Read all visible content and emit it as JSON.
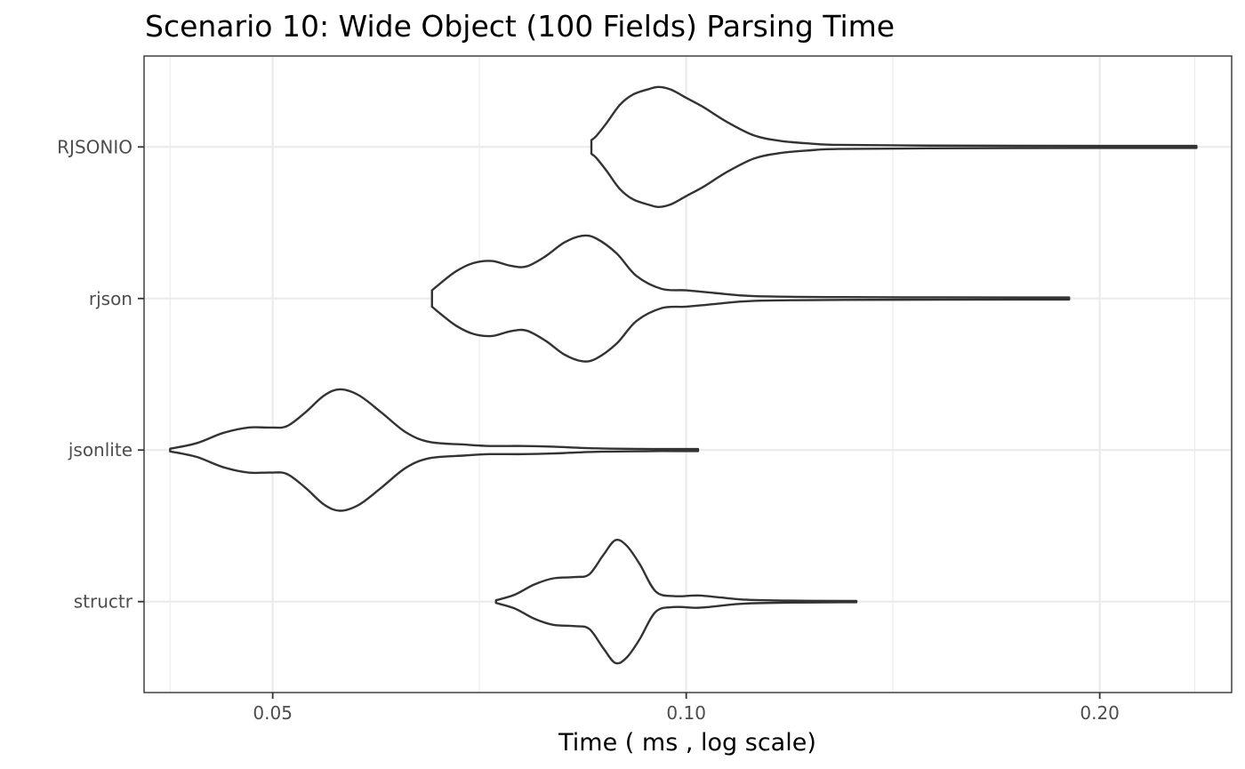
{
  "chart_data": {
    "type": "violin",
    "orientation": "horizontal",
    "title": "Scenario 10: Wide Object (100 Fields) Parsing Time",
    "xlabel": "Time ( ms , log scale)",
    "ylabel": "",
    "x_scale": "log10",
    "xlim": [
      0.0403,
      0.2495
    ],
    "x_ticks": [
      {
        "value": 0.05,
        "label": "0.05"
      },
      {
        "value": 0.1,
        "label": "0.10"
      },
      {
        "value": 0.2,
        "label": "0.20"
      }
    ],
    "x_minor_gridlines": [
      0.0421,
      0.0707,
      0.1414,
      0.2345
    ],
    "grid": true,
    "legend": "none",
    "categories": [
      "RJSONIO",
      "rjson",
      "jsonlite",
      "structr"
    ],
    "series": [
      {
        "name": "RJSONIO",
        "profile": [
          [
            0.0853,
            0.1
          ],
          [
            0.086,
            0.16
          ],
          [
            0.0875,
            0.35
          ],
          [
            0.0895,
            0.62
          ],
          [
            0.0915,
            0.77
          ],
          [
            0.094,
            0.85
          ],
          [
            0.0955,
            0.88
          ],
          [
            0.0975,
            0.84
          ],
          [
            0.1,
            0.72
          ],
          [
            0.103,
            0.58
          ],
          [
            0.107,
            0.37
          ],
          [
            0.112,
            0.17
          ],
          [
            0.117,
            0.09
          ],
          [
            0.123,
            0.05
          ],
          [
            0.129,
            0.03
          ],
          [
            0.15,
            0.02
          ],
          [
            0.2,
            0.015
          ],
          [
            0.2352,
            0.015
          ]
        ]
      },
      {
        "name": "rjson",
        "profile": [
          [
            0.0653,
            0.12
          ],
          [
            0.0662,
            0.22
          ],
          [
            0.068,
            0.4
          ],
          [
            0.07,
            0.52
          ],
          [
            0.0722,
            0.55
          ],
          [
            0.0745,
            0.48
          ],
          [
            0.0765,
            0.47
          ],
          [
            0.079,
            0.62
          ],
          [
            0.0815,
            0.82
          ],
          [
            0.084,
            0.92
          ],
          [
            0.086,
            0.88
          ],
          [
            0.089,
            0.66
          ],
          [
            0.092,
            0.33
          ],
          [
            0.096,
            0.14
          ],
          [
            0.1,
            0.12
          ],
          [
            0.105,
            0.08
          ],
          [
            0.112,
            0.035
          ],
          [
            0.13,
            0.02
          ],
          [
            0.18,
            0.015
          ],
          [
            0.19,
            0.015
          ]
        ]
      },
      {
        "name": "jsonlite",
        "profile": [
          [
            0.0421,
            0.02
          ],
          [
            0.044,
            0.1
          ],
          [
            0.046,
            0.25
          ],
          [
            0.048,
            0.33
          ],
          [
            0.0498,
            0.33
          ],
          [
            0.0512,
            0.35
          ],
          [
            0.0528,
            0.55
          ],
          [
            0.0545,
            0.8
          ],
          [
            0.056,
            0.89
          ],
          [
            0.0578,
            0.8
          ],
          [
            0.06,
            0.55
          ],
          [
            0.0625,
            0.26
          ],
          [
            0.065,
            0.12
          ],
          [
            0.069,
            0.08
          ],
          [
            0.072,
            0.06
          ],
          [
            0.076,
            0.06
          ],
          [
            0.08,
            0.05
          ],
          [
            0.086,
            0.025
          ],
          [
            0.095,
            0.015
          ],
          [
            0.102,
            0.015
          ]
        ]
      },
      {
        "name": "structr",
        "profile": [
          [
            0.0727,
            0.02
          ],
          [
            0.075,
            0.1
          ],
          [
            0.0775,
            0.25
          ],
          [
            0.08,
            0.34
          ],
          [
            0.083,
            0.36
          ],
          [
            0.085,
            0.4
          ],
          [
            0.087,
            0.68
          ],
          [
            0.0888,
            0.9
          ],
          [
            0.0905,
            0.82
          ],
          [
            0.0925,
            0.55
          ],
          [
            0.095,
            0.15
          ],
          [
            0.098,
            0.08
          ],
          [
            0.102,
            0.09
          ],
          [
            0.106,
            0.06
          ],
          [
            0.11,
            0.03
          ],
          [
            0.118,
            0.015
          ],
          [
            0.13,
            0.01
          ],
          [
            0.133,
            0.01
          ]
        ]
      }
    ]
  }
}
